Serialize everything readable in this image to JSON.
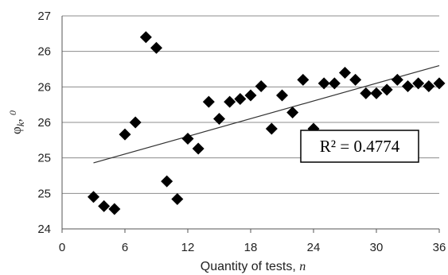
{
  "chart_data": {
    "type": "scatter",
    "title": "",
    "xlabel": "Quantity of tests, n",
    "ylabel": "φk, 0",
    "xlim": [
      0,
      36
    ],
    "ylim": [
      24,
      27
    ],
    "x_ticks": [
      0,
      6,
      12,
      18,
      24,
      30,
      36
    ],
    "x_tick_labels": [
      "0",
      "6",
      "12",
      "18",
      "24",
      "30",
      "36"
    ],
    "y_ticks": [
      24,
      24.5,
      25,
      25.5,
      26,
      26.5,
      27
    ],
    "y_tick_labels": [
      "24",
      "25",
      "25",
      "26",
      "26",
      "26",
      "27"
    ],
    "grid": "horizontal",
    "marker": "diamond",
    "marker_color": "#000000",
    "series": [
      {
        "points": [
          [
            3,
            24.45
          ],
          [
            4,
            24.32
          ],
          [
            5,
            24.28
          ],
          [
            6,
            25.33
          ],
          [
            7,
            25.5
          ],
          [
            8,
            26.7
          ],
          [
            9,
            26.55
          ],
          [
            10,
            24.67
          ],
          [
            11,
            24.42
          ],
          [
            12,
            25.27
          ],
          [
            13,
            25.13
          ],
          [
            14,
            25.79
          ],
          [
            15,
            25.55
          ],
          [
            16,
            25.79
          ],
          [
            17,
            25.83
          ],
          [
            18,
            25.88
          ],
          [
            19,
            26.01
          ],
          [
            20,
            25.41
          ],
          [
            21,
            25.88
          ],
          [
            22,
            25.64
          ],
          [
            23,
            26.1
          ],
          [
            24,
            25.41
          ],
          [
            25,
            26.05
          ],
          [
            26,
            26.05
          ],
          [
            27,
            26.2
          ],
          [
            28,
            26.1
          ],
          [
            29,
            25.91
          ],
          [
            30,
            25.91
          ],
          [
            31,
            25.96
          ],
          [
            32,
            26.1
          ],
          [
            33,
            26.01
          ],
          [
            34,
            26.05
          ],
          [
            35,
            26.01
          ],
          [
            36,
            26.05
          ]
        ]
      }
    ],
    "trendline": {
      "type": "linear",
      "x": [
        3,
        36
      ],
      "y": [
        24.93,
        26.3
      ],
      "color": "#333333"
    },
    "annotation": {
      "text": "R² = 0.4774",
      "position": "right-middle"
    }
  }
}
